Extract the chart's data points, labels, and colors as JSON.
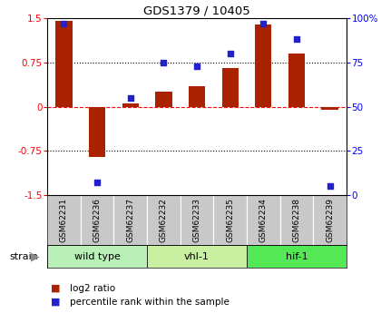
{
  "title": "GDS1379 / 10405",
  "samples": [
    "GSM62231",
    "GSM62236",
    "GSM62237",
    "GSM62232",
    "GSM62233",
    "GSM62235",
    "GSM62234",
    "GSM62238",
    "GSM62239"
  ],
  "log2_ratio": [
    1.45,
    -0.85,
    0.05,
    0.25,
    0.35,
    0.65,
    1.4,
    0.9,
    -0.05
  ],
  "percentile": [
    97,
    7,
    55,
    75,
    73,
    80,
    97,
    88,
    5
  ],
  "groups": [
    {
      "label": "wild type",
      "start": 0,
      "end": 3,
      "color": "#b8f0b8"
    },
    {
      "label": "vhl-1",
      "start": 3,
      "end": 6,
      "color": "#c8f0a0"
    },
    {
      "label": "hif-1",
      "start": 6,
      "end": 9,
      "color": "#55e855"
    }
  ],
  "bar_color": "#aa2200",
  "dot_color": "#2222cc",
  "ylim_left": [
    -1.5,
    1.5
  ],
  "ylim_right": [
    0,
    100
  ],
  "yticks_left": [
    -1.5,
    -0.75,
    0,
    0.75,
    1.5
  ],
  "yticks_right": [
    0,
    25,
    50,
    75,
    100
  ],
  "hline_values": [
    -0.75,
    0,
    0.75
  ],
  "hline_styles": [
    "dotted",
    "dashed",
    "dotted"
  ],
  "hline_colors": [
    "black",
    "red",
    "black"
  ],
  "bg_color": "#ffffff",
  "legend_log2": "log2 ratio",
  "legend_pct": "percentile rank within the sample",
  "strain_label": "strain",
  "bar_width": 0.5,
  "cell_bg": "#c8c8c8"
}
